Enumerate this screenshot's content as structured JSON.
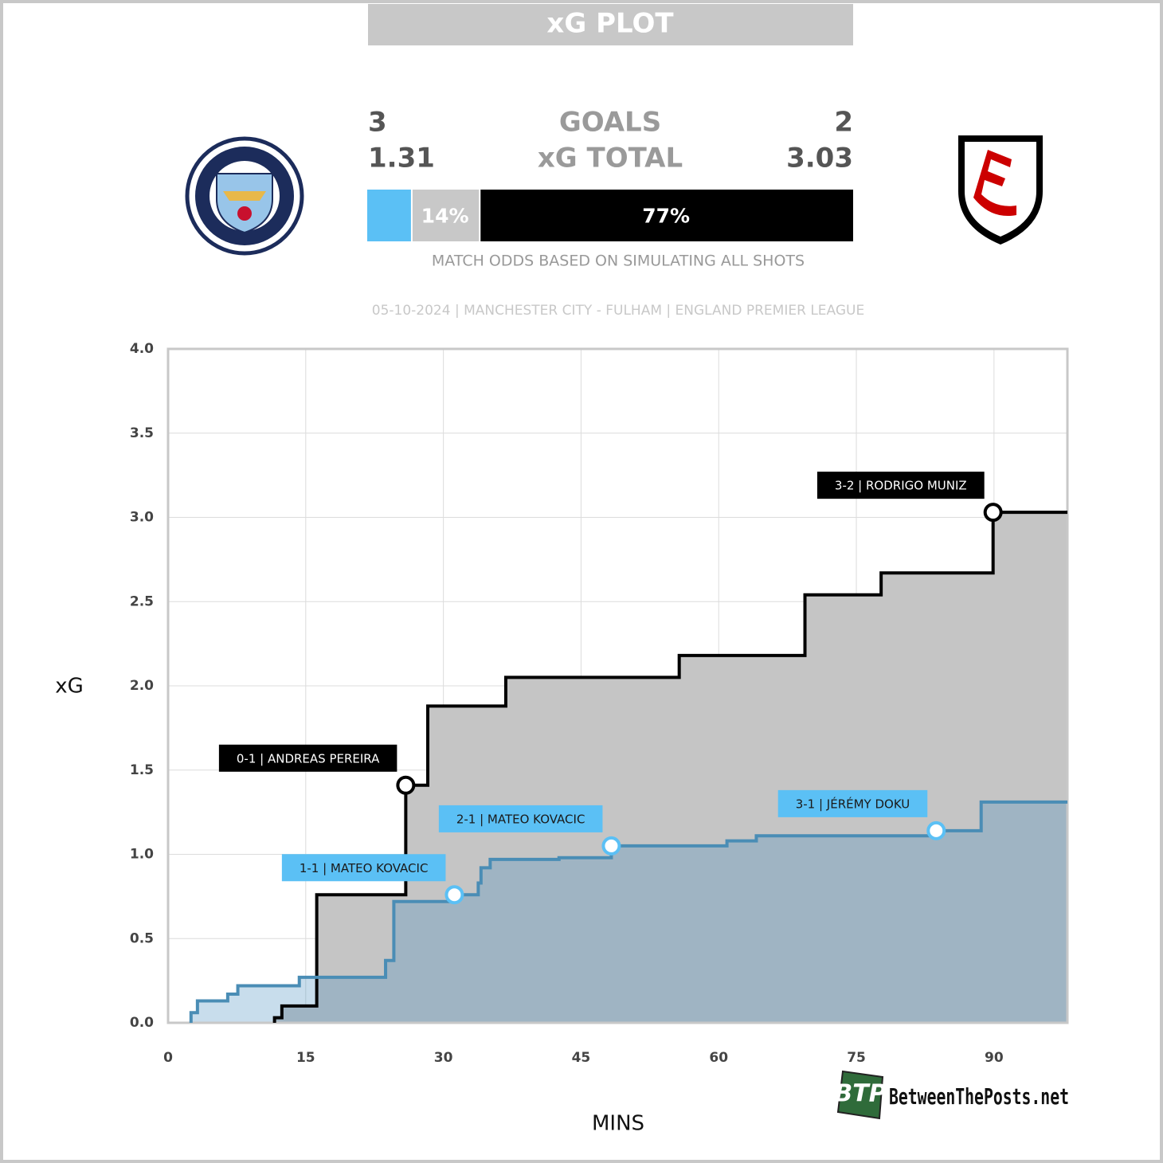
{
  "header": {
    "title": "xG PLOT",
    "subtitle": "05-10-2024 | MANCHESTER CITY - FULHAM | ENGLAND PREMIER LEAGUE",
    "home_goals": "3",
    "goals_label": "GOALS",
    "away_goals": "2",
    "home_xg": "1.31",
    "xg_label": "xG TOTAL",
    "away_xg": "3.03"
  },
  "chart_data": [
    {
      "type": "stacked_bar",
      "caption": "MATCH ODDS BASED ON SIMULATING ALL SHOTS",
      "xlim": [
        0,
        100
      ],
      "series": [
        {
          "color": "#5bc0f5",
          "values": [
            9
          ]
        },
        {
          "color": "#c8c8c8",
          "values": [
            14
          ],
          "value_labels": [
            "14%"
          ]
        },
        {
          "color": "#000000",
          "values": [
            77
          ],
          "value_labels": [
            "77%"
          ]
        }
      ]
    },
    {
      "type": "step",
      "x_label": "MINS",
      "y_label": "xG",
      "xlim": [
        0,
        98
      ],
      "ylim": [
        0,
        4
      ],
      "xticks": [
        0,
        15,
        30,
        45,
        60,
        75,
        90
      ],
      "yticks": [
        {
          "value": 0,
          "label": "0.0"
        },
        0.5,
        {
          "value": 1,
          "label": "1.0"
        },
        1.5,
        {
          "value": 2,
          "label": "2.0"
        },
        2.5,
        {
          "value": 3,
          "label": "3.0"
        },
        3.5,
        {
          "value": 4,
          "label": "4.0"
        }
      ],
      "grid": true,
      "series": [
        {
          "color": "#000000",
          "fill": "#c5c5c5",
          "x": [
            11.6,
            12.4,
            16.2,
            25.9,
            28.3,
            36.8,
            55.7,
            69.4,
            77.7,
            89.9
          ],
          "values": [
            0.03,
            0.1,
            0.76,
            1.41,
            1.88,
            2.05,
            2.18,
            2.54,
            2.67,
            3.03
          ]
        },
        {
          "color": "#4a8db5",
          "fill": "#4a90c0",
          "x": [
            2.5,
            3.2,
            6.5,
            7.6,
            14.3,
            23.7,
            24.6,
            31.2,
            33.8,
            34.1,
            35.1,
            42.6,
            48.3,
            60.9,
            64.1,
            83.7,
            88.6
          ],
          "values": [
            0.06,
            0.13,
            0.17,
            0.22,
            0.27,
            0.37,
            0.72,
            0.76,
            0.83,
            0.92,
            0.97,
            0.98,
            1.05,
            1.08,
            1.11,
            1.14,
            1.31
          ]
        }
      ],
      "annotations": [
        {
          "label": "0-1 | ANDREAS PEREIRA",
          "x": 25.9,
          "y": 1.41,
          "color": "#000000",
          "text_color": "#ffffff"
        },
        {
          "label": "1-1 | MATEO KOVACIC",
          "x": 31.2,
          "y": 0.76,
          "color": "#5bc0f5",
          "text_color": "#1a1a1a"
        },
        {
          "label": "2-1 | MATEO KOVACIC",
          "x": 48.3,
          "y": 1.05,
          "color": "#5bc0f5",
          "text_color": "#1a1a1a"
        },
        {
          "label": "3-1 | JÉRÉMY DOKU",
          "x": 83.7,
          "y": 1.14,
          "color": "#5bc0f5",
          "text_color": "#1a1a1a"
        },
        {
          "label": "3-2 | RODRIGO MUNIZ",
          "x": 89.9,
          "y": 3.03,
          "color": "#000000",
          "text_color": "#ffffff"
        }
      ]
    }
  ],
  "credit": {
    "logo": "BTP",
    "text": "BetweenThePosts.net"
  }
}
